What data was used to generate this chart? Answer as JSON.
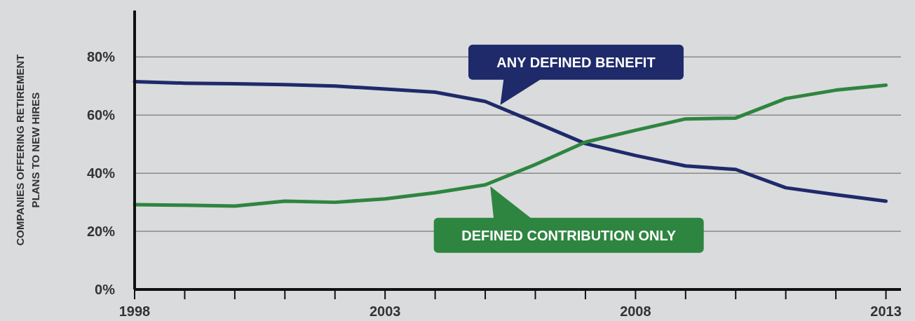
{
  "chart_data": {
    "type": "line",
    "ylabel": "COMPANIES OFFERING RETIREMENT PLANS TO NEW HIRES",
    "x": [
      1998,
      1999,
      2000,
      2001,
      2002,
      2003,
      2004,
      2005,
      2006,
      2007,
      2008,
      2009,
      2010,
      2011,
      2012,
      2013
    ],
    "series": [
      {
        "color": "#1f2a6b",
        "values": [
          71.5,
          71,
          70.8,
          70.5,
          70,
          69,
          67.9,
          64.7,
          57.5,
          50.2,
          46.1,
          42.5,
          41.3,
          35,
          32.6,
          30.4
        ]
      },
      {
        "color": "#2e8540",
        "values": [
          29.2,
          29,
          28.7,
          30.4,
          30,
          31.2,
          33.3,
          36,
          43,
          50.7,
          54.8,
          58.7,
          59,
          65.7,
          68.6,
          70.3
        ]
      }
    ],
    "annotations": [
      {
        "text": "ANY DEFINED BENEFIT",
        "x": 2005.3,
        "y": 63.5
      },
      {
        "text": "DEFINED CONTRIBUTION ONLY",
        "x": 2005.1,
        "y": 35.5
      }
    ],
    "xlim": [
      1998,
      2013.3
    ],
    "ylim": [
      0,
      96
    ],
    "xticks": [
      1998,
      {
        "value": 1999,
        "label": null
      },
      {
        "value": 2000,
        "label": null
      },
      {
        "value": 2001,
        "label": null
      },
      {
        "value": 2002,
        "label": null
      },
      2003,
      {
        "value": 2004,
        "label": null
      },
      {
        "value": 2005,
        "label": null
      },
      {
        "value": 2006,
        "label": null
      },
      {
        "value": 2007,
        "label": null
      },
      2008,
      {
        "value": 2009,
        "label": null
      },
      {
        "value": 2010,
        "label": null
      },
      {
        "value": 2011,
        "label": null
      },
      {
        "value": 2012,
        "label": null
      },
      2013
    ],
    "yticks": [
      {
        "value": 0,
        "label": "0%"
      },
      {
        "value": 20,
        "label": "20%"
      },
      {
        "value": 40,
        "label": "40%"
      },
      {
        "value": 60,
        "label": "60%"
      },
      {
        "value": 80,
        "label": "80%"
      }
    ],
    "grid": "y",
    "marker": "none",
    "line_style": "solid"
  }
}
